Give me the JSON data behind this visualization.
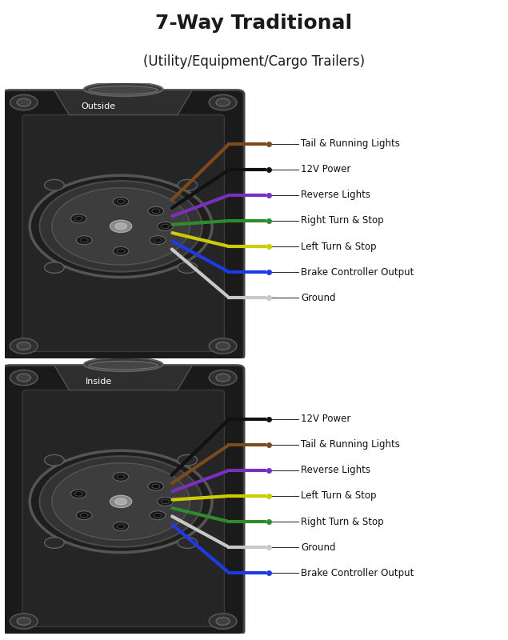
{
  "title": "7-Way Traditional",
  "subtitle": "(Utility/Equipment/Cargo Trailers)",
  "title_fontsize": 18,
  "subtitle_fontsize": 12,
  "background_color": "#ffffff",
  "outside_label": "Outside",
  "inside_label": "Inside",
  "outside_wires": [
    {
      "color": "#7B4A1E",
      "label": "Tail & Running Lights"
    },
    {
      "color": "#111111",
      "label": "12V Power"
    },
    {
      "color": "#7B2FBE",
      "label": "Reverse Lights"
    },
    {
      "color": "#2E8B2E",
      "label": "Right Turn & Stop"
    },
    {
      "color": "#CCCC00",
      "label": "Left Turn & Stop"
    },
    {
      "color": "#1E3AE8",
      "label": "Brake Controller Output"
    },
    {
      "color": "#c8c8c8",
      "label": "Ground"
    }
  ],
  "inside_wires": [
    {
      "color": "#111111",
      "label": "12V Power"
    },
    {
      "color": "#7B4A1E",
      "label": "Tail & Running Lights"
    },
    {
      "color": "#7B2FBE",
      "label": "Reverse Lights"
    },
    {
      "color": "#CCCC00",
      "label": "Left Turn & Stop"
    },
    {
      "color": "#2E8B2E",
      "label": "Right Turn & Stop"
    },
    {
      "color": "#c8c8c8",
      "label": "Ground"
    },
    {
      "color": "#1E3AE8",
      "label": "Brake Controller Output"
    }
  ]
}
